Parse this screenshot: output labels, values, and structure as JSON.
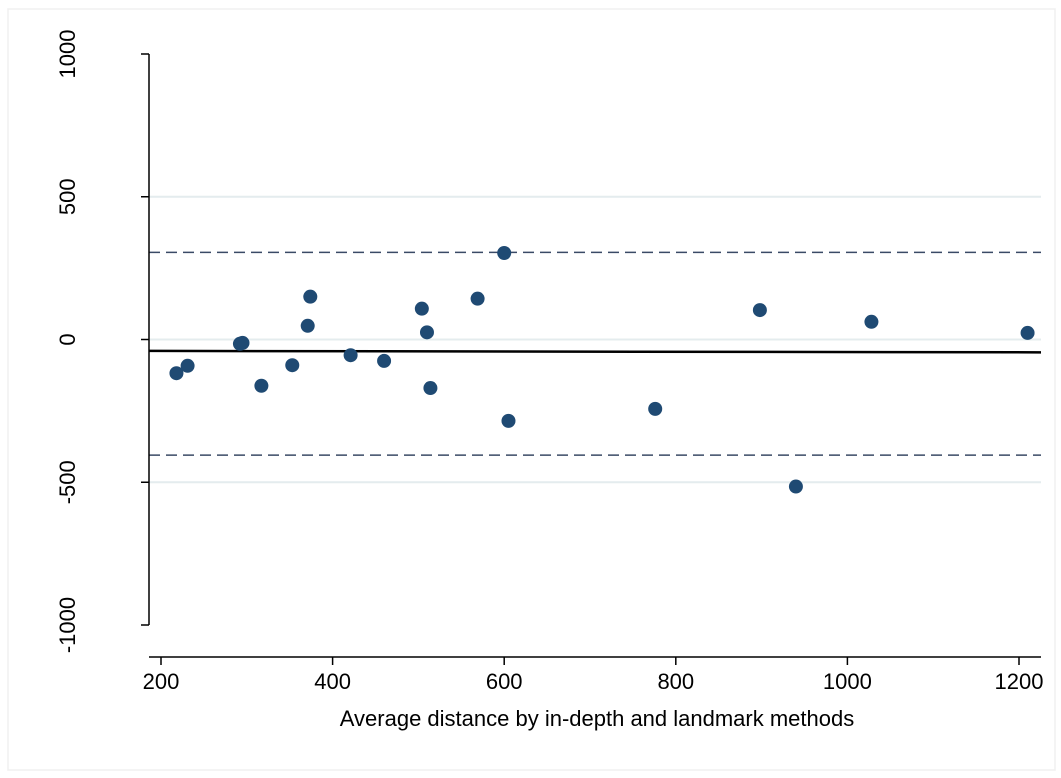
{
  "chart_data": {
    "type": "scatter",
    "title": "",
    "xlabel": "Average distance by in-depth and landmark methods",
    "ylabel": "",
    "xlim": [
      185,
      1230
    ],
    "ylim": [
      -1000,
      1000
    ],
    "x_ticks": [
      200,
      400,
      600,
      800,
      1000,
      1200
    ],
    "x_tick_labels": [
      "200",
      "400",
      "600",
      "800",
      "1000",
      "1200"
    ],
    "y_ticks": [
      -1000,
      -500,
      0,
      500,
      1000
    ],
    "y_tick_labels": [
      "-1000",
      "-500",
      "0",
      "500",
      "1000"
    ],
    "grid": true,
    "grid_lines_y": [
      -500,
      0,
      500
    ],
    "legend": "none",
    "colors": {
      "points": "#1f4a73",
      "mean_line": "#000000",
      "limit_lines": "#3a4a66",
      "grid": "#e4ecee"
    },
    "reference_lines": {
      "mean": {
        "y": [
          -40,
          -45
        ]
      },
      "upper_limit": 305,
      "lower_limit": -405
    },
    "series": [
      {
        "points": [
          {
            "x": 218,
            "y": -118
          },
          {
            "x": 231,
            "y": -92
          },
          {
            "x": 292,
            "y": -15
          },
          {
            "x": 295,
            "y": -12
          },
          {
            "x": 317,
            "y": -162
          },
          {
            "x": 353,
            "y": -90
          },
          {
            "x": 371,
            "y": 48
          },
          {
            "x": 374,
            "y": 150
          },
          {
            "x": 421,
            "y": -55
          },
          {
            "x": 460,
            "y": -75
          },
          {
            "x": 504,
            "y": 108
          },
          {
            "x": 510,
            "y": 25
          },
          {
            "x": 514,
            "y": -170
          },
          {
            "x": 569,
            "y": 143
          },
          {
            "x": 600,
            "y": 303
          },
          {
            "x": 605,
            "y": -285
          },
          {
            "x": 776,
            "y": -243
          },
          {
            "x": 898,
            "y": 103
          },
          {
            "x": 940,
            "y": -515
          },
          {
            "x": 1028,
            "y": 62
          },
          {
            "x": 1210,
            "y": 23
          }
        ]
      }
    ]
  }
}
